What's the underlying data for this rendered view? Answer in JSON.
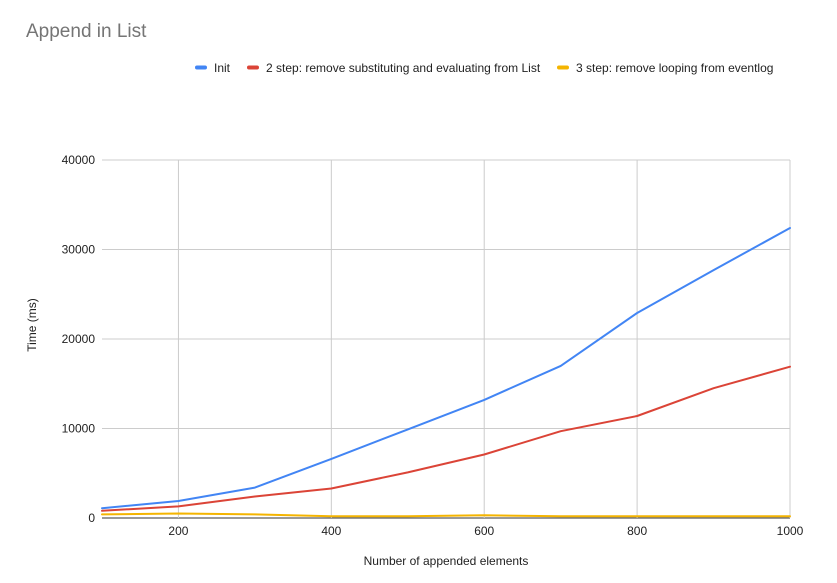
{
  "chart_data": {
    "type": "line",
    "title": "Append in List",
    "xlabel": "Number of appended elements",
    "ylabel": "Time (ms)",
    "xlim": [
      100,
      1000
    ],
    "ylim": [
      0,
      40000
    ],
    "x_ticks": [
      200,
      400,
      600,
      800,
      1000
    ],
    "y_ticks": [
      0,
      10000,
      20000,
      30000,
      40000
    ],
    "grid": true,
    "legend_position": "top",
    "x": [
      100,
      200,
      300,
      400,
      500,
      600,
      700,
      800,
      900,
      1000
    ],
    "series": [
      {
        "name": "Init",
        "color": "#4285f4",
        "values": [
          1100,
          1900,
          3400,
          6600,
          9900,
          13200,
          17000,
          22900,
          27700,
          32400
        ]
      },
      {
        "name": "2 step: remove substituting and evaluating from List",
        "color": "#db4437",
        "values": [
          800,
          1300,
          2400,
          3300,
          5100,
          7100,
          9700,
          11400,
          14500,
          16900
        ]
      },
      {
        "name": "3 step: remove looping from eventlog",
        "color": "#f4b400",
        "values": [
          400,
          500,
          400,
          200,
          200,
          300,
          200,
          200,
          200,
          200
        ]
      }
    ]
  }
}
